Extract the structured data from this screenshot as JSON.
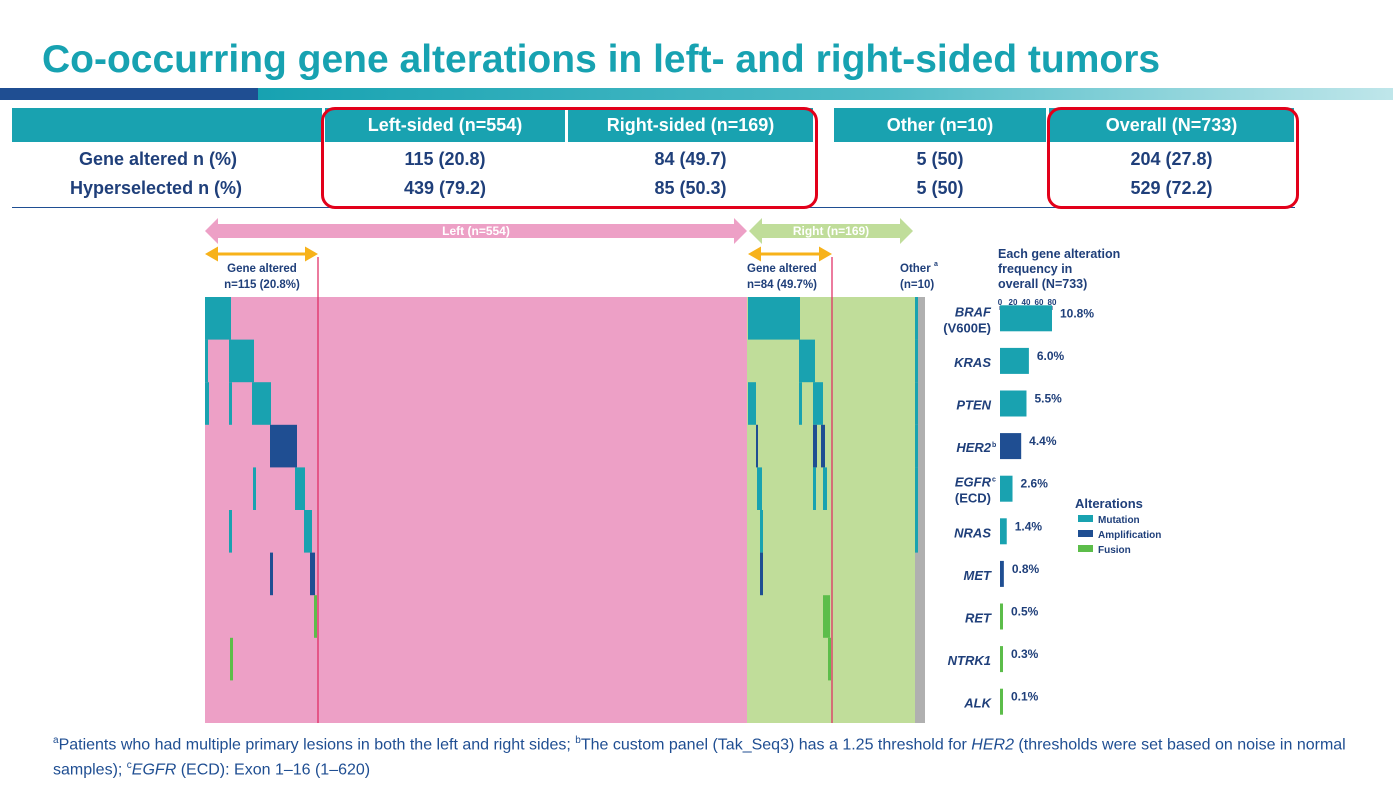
{
  "title": "Co-occurring gene alterations in left- and right-sided tumors",
  "table": {
    "headers": [
      "Left-sided (n=554)",
      "Right-sided (n=169)",
      "Other (n=10)",
      "Overall (N=733)"
    ],
    "rows": [
      {
        "label": "Gene altered n (%)",
        "values": [
          "115 (20.8)",
          "84 (49.7)",
          "5 (50)",
          "204 (27.8)"
        ]
      },
      {
        "label": "Hyperselected n (%)",
        "values": [
          "439 (79.2)",
          "85 (50.3)",
          "5 (50)",
          "529 (72.2)"
        ]
      }
    ]
  },
  "chart_data": {
    "type": "bar",
    "panels": {
      "left_arrow": "Left (n=554)",
      "right_arrow": "Right (n=169)",
      "left_altered": [
        "Gene altered",
        "n=115 (20.8%)"
      ],
      "right_altered": [
        "Gene altered",
        "n=84 (49.7%)"
      ],
      "other": [
        "Other",
        "(n=10)"
      ],
      "other_sup": "a"
    },
    "freq_title": [
      "Each gene alteration",
      "frequency in",
      "overall (N=733)"
    ],
    "axis_ticks": [
      "0",
      "20",
      "40",
      "60",
      "80"
    ],
    "categories": [
      {
        "gene": "BRAF",
        "sub": "(V600E)",
        "sup": "",
        "value": 10.8,
        "label": "10.8%",
        "type": "Mutation"
      },
      {
        "gene": "KRAS",
        "sub": "",
        "sup": "",
        "value": 6.0,
        "label": "6.0%",
        "type": "Mutation"
      },
      {
        "gene": "PTEN",
        "sub": "",
        "sup": "",
        "value": 5.5,
        "label": "5.5%",
        "type": "Mutation"
      },
      {
        "gene": "HER2",
        "sub": "",
        "sup": "b",
        "value": 4.4,
        "label": "4.4%",
        "type": "Amplification"
      },
      {
        "gene": "EGFR",
        "sub": "(ECD)",
        "sup": "c",
        "value": 2.6,
        "label": "2.6%",
        "type": "Mutation"
      },
      {
        "gene": "NRAS",
        "sub": "",
        "sup": "",
        "value": 1.4,
        "label": "1.4%",
        "type": "Mutation"
      },
      {
        "gene": "MET",
        "sub": "",
        "sup": "",
        "value": 0.8,
        "label": "0.8%",
        "type": "Amplification"
      },
      {
        "gene": "RET",
        "sub": "",
        "sup": "",
        "value": 0.5,
        "label": "0.5%",
        "type": "Fusion"
      },
      {
        "gene": "NTRK1",
        "sub": "",
        "sup": "",
        "value": 0.3,
        "label": "0.3%",
        "type": "Fusion"
      },
      {
        "gene": "ALK",
        "sub": "",
        "sup": "",
        "value": 0.1,
        "label": "0.1%",
        "type": "Fusion"
      }
    ],
    "legend": {
      "title": "Alterations",
      "items": [
        {
          "name": "Mutation",
          "color": "#19a2b0"
        },
        {
          "name": "Amplification",
          "color": "#1f4e92"
        },
        {
          "name": "Fusion",
          "color": "#5cbd4a"
        }
      ]
    },
    "colors": {
      "left_bg": "#eda0c6",
      "right_bg": "#c0dd9a",
      "other_bg": "#b0b0b0",
      "left_arrow": "#eda0c6",
      "right_arrow": "#c0dd9a",
      "altered_arrow": "#f7b21a",
      "divider": "#e0245e"
    }
  },
  "footnote": {
    "a": "a",
    "a_text": "Patients who had multiple primary lesions in both the left and right sides; ",
    "b": "b",
    "b_text": "The custom panel (Tak_Seq3) has a 1.25 threshold for ",
    "b_em": "HER2",
    "b_text2": " (thresholds were set based on noise in normal samples); ",
    "c": "c",
    "c_em": "EGFR",
    "c_text": " (ECD): Exon 1–16 (1–620)"
  }
}
